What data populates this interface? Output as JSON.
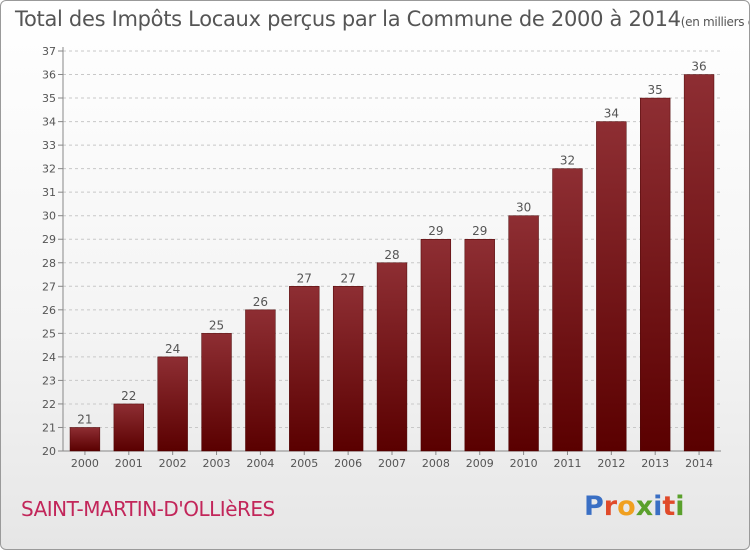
{
  "chart_data": {
    "type": "bar",
    "title": "Total des Impôts Locaux perçus par la Commune de 2000 à 2014",
    "unit_note": "(en milliers d'€)",
    "categories": [
      "2000",
      "2001",
      "2002",
      "2003",
      "2004",
      "2005",
      "2006",
      "2007",
      "2008",
      "2009",
      "2010",
      "2011",
      "2012",
      "2013",
      "2014"
    ],
    "values": [
      21,
      22,
      24,
      25,
      26,
      27,
      27,
      28,
      29,
      29,
      30,
      32,
      34,
      35,
      36
    ],
    "data_labels": [
      "21",
      "22",
      "24",
      "25",
      "26",
      "27",
      "27",
      "28",
      "29",
      "29",
      "30",
      "32",
      "34",
      "35",
      "36"
    ],
    "ylim": [
      20,
      37
    ],
    "yticks": [
      "20",
      "21",
      "22",
      "23",
      "24",
      "25",
      "26",
      "27",
      "28",
      "29",
      "30",
      "31",
      "32",
      "33",
      "34",
      "35",
      "36",
      "37"
    ],
    "xlabel": "",
    "ylabel": "",
    "grid": true,
    "bar_color": "#7a1a1f"
  },
  "footer": {
    "commune": "SAINT-MARTIN-D'OLLIèRES",
    "logo_letters": [
      "P",
      "r",
      "o",
      "x",
      "i",
      "t",
      "i"
    ],
    "logo_colors": [
      "#3a6fc4",
      "#e04a2a",
      "#f0a020",
      "#5aa02c",
      "#3a6fc4",
      "#e04a2a",
      "#5aa02c"
    ]
  }
}
